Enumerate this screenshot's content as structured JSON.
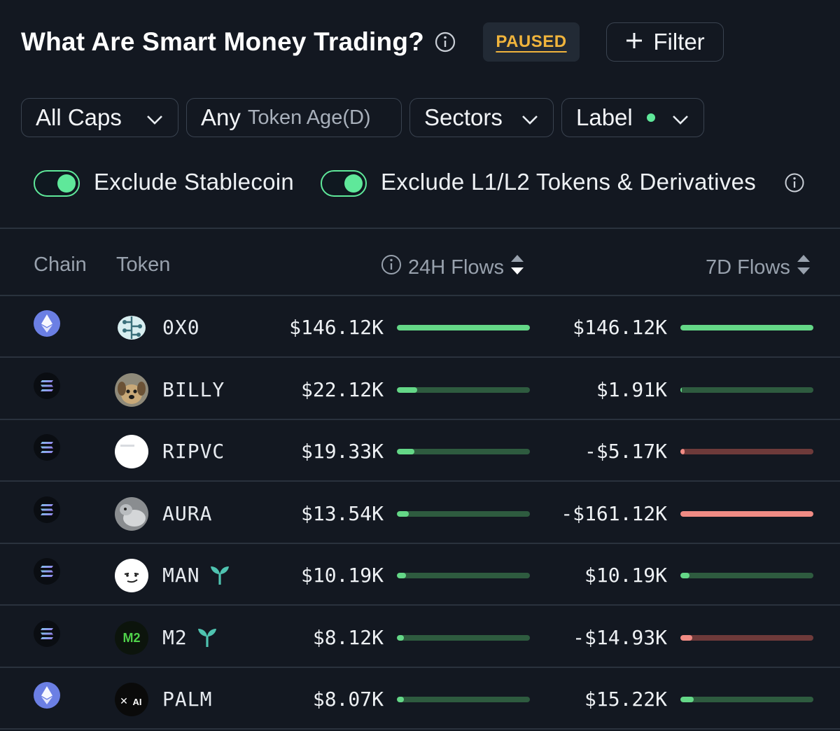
{
  "header": {
    "title": "What Are Smart Money Trading?",
    "status_badge": "PAUSED",
    "filter_button": "Filter"
  },
  "filters": {
    "caps": "All Caps",
    "token_age_value": "Any",
    "token_age_label": "Token Age(D)",
    "sectors": "Sectors",
    "label": "Label"
  },
  "toggles": {
    "exclude_stablecoin": {
      "label": "Exclude Stablecoin",
      "on": true
    },
    "exclude_l1l2": {
      "label": "Exclude L1/L2 Tokens & Derivatives",
      "on": true
    }
  },
  "table": {
    "columns": {
      "chain": "Chain",
      "token": "Token",
      "flows_24h": "24H Flows",
      "flows_7d": "7D Flows"
    },
    "rows": [
      {
        "chain": "ethereum",
        "token": "0X0",
        "icon": "brain-icon",
        "new": false,
        "flow24h": "$146.12K",
        "bar24h": 1.0,
        "dir24h": "in",
        "flow7d": "$146.12K",
        "bar7d": 1.0,
        "dir7d": "in"
      },
      {
        "chain": "solana",
        "token": "BILLY",
        "icon": "dog-icon",
        "new": false,
        "flow24h": "$22.12K",
        "bar24h": 0.15,
        "dir24h": "in",
        "flow7d": "$1.91K",
        "bar7d": 0.01,
        "dir7d": "in"
      },
      {
        "chain": "solana",
        "token": "RIPVC",
        "icon": "blank-icon",
        "new": false,
        "flow24h": "$19.33K",
        "bar24h": 0.13,
        "dir24h": "in",
        "flow7d": "-$5.17K",
        "bar7d": 0.03,
        "dir7d": "out"
      },
      {
        "chain": "solana",
        "token": "AURA",
        "icon": "photo-icon",
        "new": false,
        "flow24h": "$13.54K",
        "bar24h": 0.09,
        "dir24h": "in",
        "flow7d": "-$161.12K",
        "bar7d": 1.0,
        "dir7d": "out"
      },
      {
        "chain": "solana",
        "token": "MAN",
        "icon": "face-icon",
        "new": true,
        "flow24h": "$10.19K",
        "bar24h": 0.07,
        "dir24h": "in",
        "flow7d": "$10.19K",
        "bar7d": 0.07,
        "dir7d": "in"
      },
      {
        "chain": "solana",
        "token": "M2",
        "icon": "m2-logo-icon",
        "new": true,
        "flow24h": "$8.12K",
        "bar24h": 0.05,
        "dir24h": "in",
        "flow7d": "-$14.93K",
        "bar7d": 0.09,
        "dir7d": "out"
      },
      {
        "chain": "ethereum",
        "token": "PALM",
        "icon": "palm-ai-icon",
        "new": false,
        "flow24h": "$8.07K",
        "bar24h": 0.05,
        "dir24h": "in",
        "flow7d": "$15.22K",
        "bar7d": 0.1,
        "dir7d": "in"
      }
    ]
  },
  "colors": {
    "background": "#131821",
    "accent_green": "#5fe89a",
    "inflow": "#64d787",
    "outflow": "#f08b84",
    "paused": "#f0b43c"
  }
}
